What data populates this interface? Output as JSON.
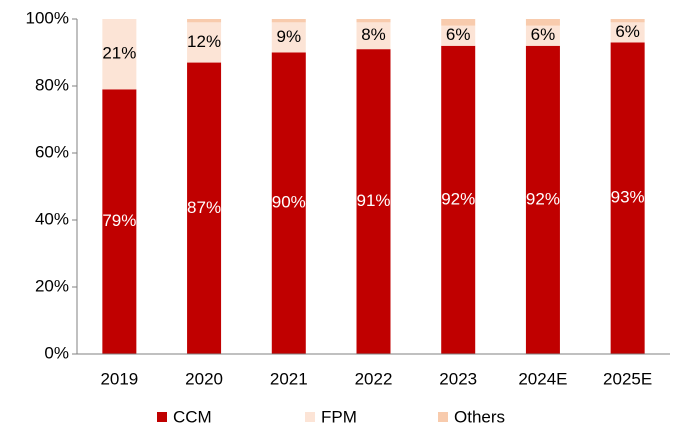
{
  "chart_data": {
    "type": "stacked_bar",
    "categories": [
      "2019",
      "2020",
      "2021",
      "2022",
      "2023",
      "2024E",
      "2025E"
    ],
    "series": [
      {
        "name": "CCM",
        "color": "#C00000",
        "values": [
          79,
          87,
          90,
          91,
          92,
          92,
          93
        ],
        "value_labels": [
          "79%",
          "87%",
          "90%",
          "91%",
          "92%",
          "92%",
          "93%"
        ]
      },
      {
        "name": "FPM",
        "color": "#FCE4D6",
        "values": [
          21,
          12,
          9,
          8,
          6,
          6,
          6
        ],
        "value_labels": [
          "21%",
          "12%",
          "9%",
          "8%",
          "6%",
          "6%",
          "6%"
        ]
      },
      {
        "name": "Others",
        "color": "#F8CBAD",
        "values": [
          0,
          1,
          1,
          1,
          2,
          2,
          1
        ]
      }
    ],
    "ylim": [
      0,
      100
    ],
    "yticks": [
      {
        "value": 0,
        "label": "0%"
      },
      {
        "value": 20,
        "label": "20%"
      },
      {
        "value": 40,
        "label": "40%"
      },
      {
        "value": 60,
        "label": "60%"
      },
      {
        "value": 80,
        "label": "80%"
      },
      {
        "value": 100,
        "label": "100%"
      }
    ],
    "legend": "bottom"
  }
}
